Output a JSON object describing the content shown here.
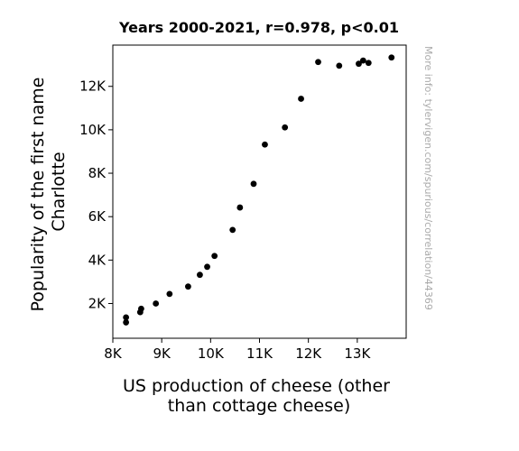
{
  "chart_data": {
    "type": "scatter",
    "title": "Years 2000-2021, r=0.978, p<0.01",
    "xlabel_lines": [
      "US production of cheese (other",
      "than cottage cheese)"
    ],
    "ylabel_lines": [
      "Popularity of the first name",
      "Charlotte"
    ],
    "credit": "More info: tylervigen.com/spurious/correlation/44369",
    "xlim": [
      8000,
      14000
    ],
    "ylim": [
      400,
      13900
    ],
    "x_ticks": [
      8000,
      9000,
      10000,
      11000,
      12000,
      13000
    ],
    "x_tick_labels": [
      "8K",
      "9K",
      "10K",
      "11K",
      "12K",
      "13K"
    ],
    "y_ticks": [
      2000,
      4000,
      6000,
      8000,
      10000,
      12000
    ],
    "y_tick_labels": [
      "2K",
      "4K",
      "6K",
      "8K",
      "10K",
      "12K"
    ],
    "marker_color": "#000000",
    "points": [
      {
        "x": 8270,
        "y": 1130
      },
      {
        "x": 8270,
        "y": 1360
      },
      {
        "x": 8560,
        "y": 1600
      },
      {
        "x": 8580,
        "y": 1760
      },
      {
        "x": 8880,
        "y": 2000
      },
      {
        "x": 9160,
        "y": 2440
      },
      {
        "x": 9540,
        "y": 2780
      },
      {
        "x": 9780,
        "y": 3320
      },
      {
        "x": 9930,
        "y": 3690
      },
      {
        "x": 10080,
        "y": 4190
      },
      {
        "x": 10450,
        "y": 5390
      },
      {
        "x": 10600,
        "y": 6420
      },
      {
        "x": 10880,
        "y": 7510
      },
      {
        "x": 11110,
        "y": 9320
      },
      {
        "x": 11520,
        "y": 10110
      },
      {
        "x": 11850,
        "y": 11430
      },
      {
        "x": 12200,
        "y": 13120
      },
      {
        "x": 12630,
        "y": 12950
      },
      {
        "x": 13030,
        "y": 13040
      },
      {
        "x": 13120,
        "y": 13190
      },
      {
        "x": 13230,
        "y": 13080
      },
      {
        "x": 13700,
        "y": 13330
      }
    ]
  }
}
